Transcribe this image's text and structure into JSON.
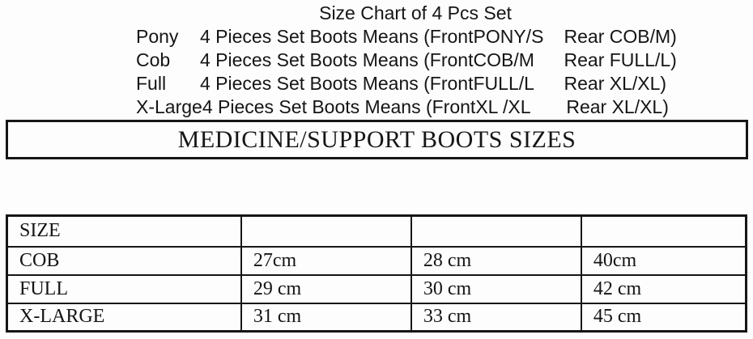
{
  "title": "Size Chart of 4 Pcs Set",
  "set_rows": [
    {
      "name": "Pony",
      "desc": "4 Pieces Set Boots Means (Front",
      "front": "PONY/S",
      "rear": "Rear COB/M)"
    },
    {
      "name": "Cob",
      "desc": "4 Pieces Set Boots Means (Front",
      "front": "COB/M",
      "rear": "Rear FULL/L)"
    },
    {
      "name": "Full",
      "desc": "4 Pieces Set Boots Means (Front",
      "front": "FULL/L",
      "rear": "Rear XL/XL)"
    },
    {
      "name": "X-Large",
      "desc": "4 Pieces Set Boots Means (Front",
      "front": "XL /XL",
      "rear": "Rear XL/XL)"
    }
  ],
  "banner": {
    "label": "MEDICINE/SUPPORT BOOTS SIZES"
  },
  "size_table": {
    "header_row": [
      "SIZE",
      "",
      "",
      ""
    ],
    "rows": [
      [
        "COB",
        "27cm",
        "28 cm",
        "40cm"
      ],
      [
        "FULL",
        "29 cm",
        "30 cm",
        "42 cm"
      ],
      [
        "X-LARGE",
        "31 cm",
        "33 cm",
        "45 cm"
      ]
    ]
  },
  "chart_data": {
    "type": "table",
    "title": "MEDICINE/SUPPORT BOOTS SIZES",
    "columns": [
      "SIZE",
      "",
      "",
      ""
    ],
    "rows": [
      [
        "COB",
        "27cm",
        "28 cm",
        "40cm"
      ],
      [
        "FULL",
        "29 cm",
        "30 cm",
        "42 cm"
      ],
      [
        "X-LARGE",
        "31 cm",
        "33 cm",
        "45 cm"
      ]
    ]
  },
  "colors": {
    "text": "#151515",
    "border": "#161616",
    "background": "#fdfdfd"
  }
}
